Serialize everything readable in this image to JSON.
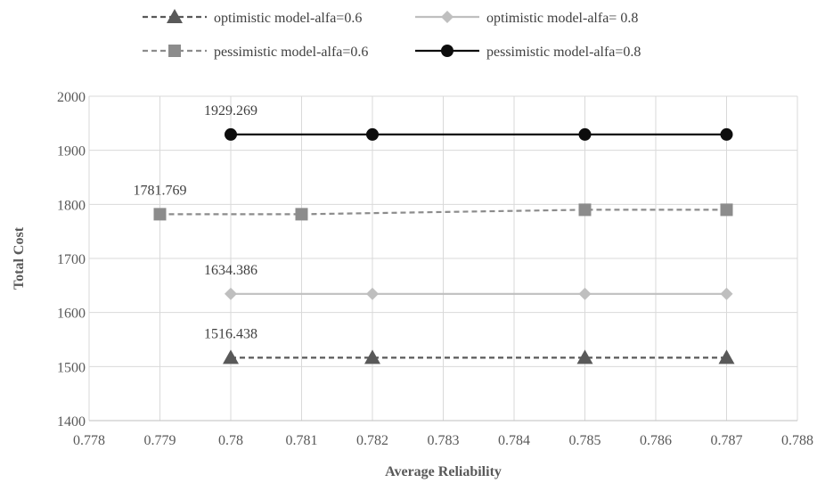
{
  "chart_data": {
    "type": "line",
    "title": "",
    "xlabel": "Average Reliability",
    "ylabel": "Total Cost",
    "xlim": [
      0.778,
      0.788
    ],
    "ylim": [
      1400,
      2000
    ],
    "xticks": [
      "0.778",
      "0.779",
      "0.78",
      "0.781",
      "0.782",
      "0.783",
      "0.784",
      "0.785",
      "0.786",
      "0.787",
      "0.788"
    ],
    "yticks": [
      "1400",
      "1500",
      "1600",
      "1700",
      "1800",
      "1900",
      "2000"
    ],
    "grid": true,
    "legend_position": "top",
    "series": [
      {
        "name": "optimistic model-alfa=0.6",
        "x": [
          0.78,
          0.782,
          0.785,
          0.787
        ],
        "y": [
          1516.438,
          1516.438,
          1516.438,
          1516.438
        ],
        "color": "#595959",
        "dash": true,
        "marker": "triangle",
        "label": "1516.438"
      },
      {
        "name": "optimistic model-alfa= 0.8",
        "x": [
          0.78,
          0.782,
          0.785,
          0.787
        ],
        "y": [
          1634.386,
          1634.386,
          1634.386,
          1634.386
        ],
        "color": "#bfbfbf",
        "dash": false,
        "marker": "diamond",
        "label": "1634.386"
      },
      {
        "name": "pessimistic model-alfa=0.6",
        "x": [
          0.779,
          0.781,
          0.785,
          0.787
        ],
        "y": [
          1781.769,
          1781.769,
          1790,
          1790
        ],
        "color": "#8c8c8c",
        "dash": true,
        "marker": "square",
        "label": "1781.769"
      },
      {
        "name": "pessimistic model-alfa=0.8",
        "x": [
          0.78,
          0.782,
          0.785,
          0.787
        ],
        "y": [
          1929.269,
          1929.269,
          1929.269,
          1929.269
        ],
        "color": "#0d0d0d",
        "dash": false,
        "marker": "circle",
        "label": "1929.269"
      }
    ]
  }
}
